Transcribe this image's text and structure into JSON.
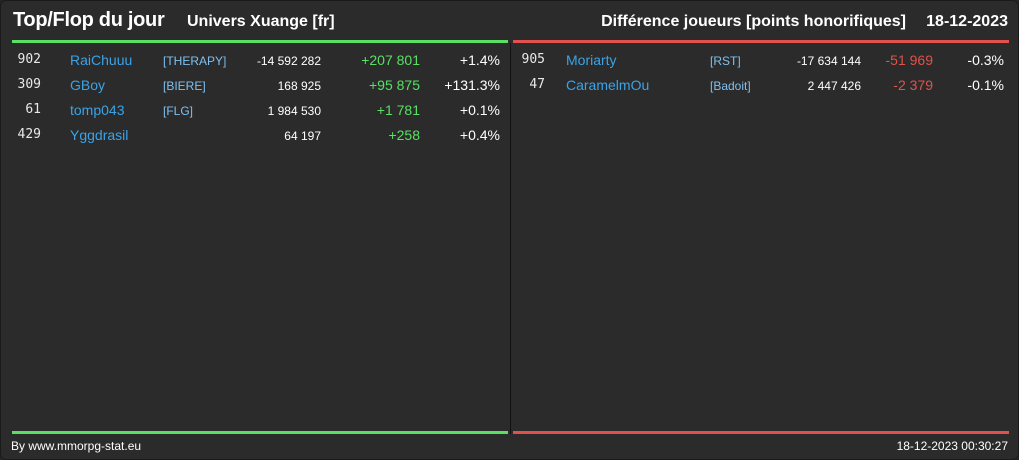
{
  "header": {
    "title": "Top/Flop du jour",
    "universe": "Univers Xuange [fr]",
    "metric": "Différence joueurs [points honorifiques]",
    "date": "18-12-2023"
  },
  "colors": {
    "top": "#58e062",
    "flop": "#e0524b",
    "player": "#3aa3e8",
    "alliance": "#7ec0f0"
  },
  "top": [
    {
      "rank": "902",
      "player": "RaiChuuu",
      "alliance": "[THERAPY]",
      "total": "-14 592 282",
      "diff": "+207 801",
      "pct": "+1.4%"
    },
    {
      "rank": "309",
      "player": "GBoy",
      "alliance": "[BIERE]",
      "total": "168 925",
      "diff": "+95 875",
      "pct": "+131.3%"
    },
    {
      "rank": "61",
      "player": "tomp043",
      "alliance": "[FLG]",
      "total": "1 984 530",
      "diff": "+1 781",
      "pct": "+0.1%"
    },
    {
      "rank": "429",
      "player": "Yggdrasil",
      "alliance": "",
      "total": "64 197",
      "diff": "+258",
      "pct": "+0.4%"
    }
  ],
  "flop": [
    {
      "rank": "905",
      "player": "Moriarty",
      "alliance": "[RST]",
      "total": "-17 634 144",
      "diff": "-51 969",
      "pct": "-0.3%"
    },
    {
      "rank": "47",
      "player": "CaramelmOu",
      "alliance": "[Badoit]",
      "total": "2 447 426",
      "diff": "-2 379",
      "pct": "-0.1%"
    }
  ],
  "footer": {
    "credit": "By www.mmorpg-stat.eu",
    "timestamp": "18-12-2023 00:30:27"
  }
}
